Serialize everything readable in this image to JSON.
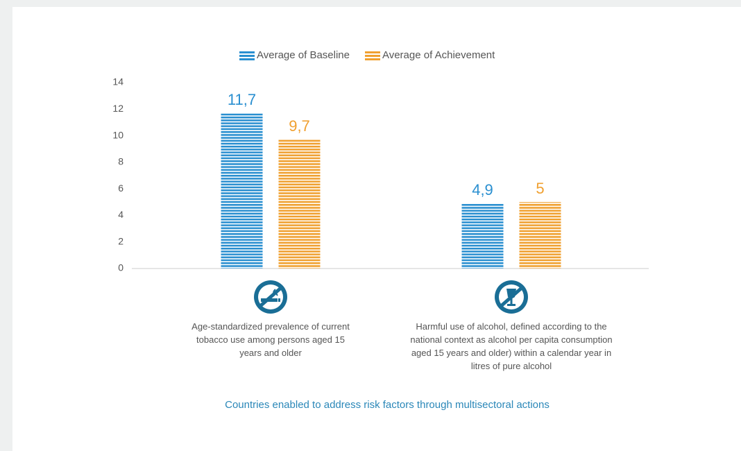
{
  "chart_data": {
    "type": "bar",
    "caption": "Countries enabled to address risk factors through multisectoral actions",
    "categories": [
      "Age-standardized prevalence of current tobacco use among persons aged 15 years and older",
      "Harmful use of alcohol, defined according to the national context as alcohol per capita consumption aged 15 years and older) within a calendar year in litres of pure alcohol"
    ],
    "series": [
      {
        "name": "Average of Baseline",
        "color": "#2a8fd0",
        "values": [
          11.7,
          4.9
        ],
        "value_labels": [
          "11,7",
          "4,9"
        ]
      },
      {
        "name": "Average of Achievement",
        "color": "#f0a030",
        "values": [
          9.7,
          5
        ],
        "value_labels": [
          "9,7",
          "5"
        ]
      }
    ],
    "ylim": [
      0,
      14
    ],
    "yticks": [
      0,
      2,
      4,
      6,
      8,
      10,
      12,
      14
    ],
    "legend": "top"
  }
}
